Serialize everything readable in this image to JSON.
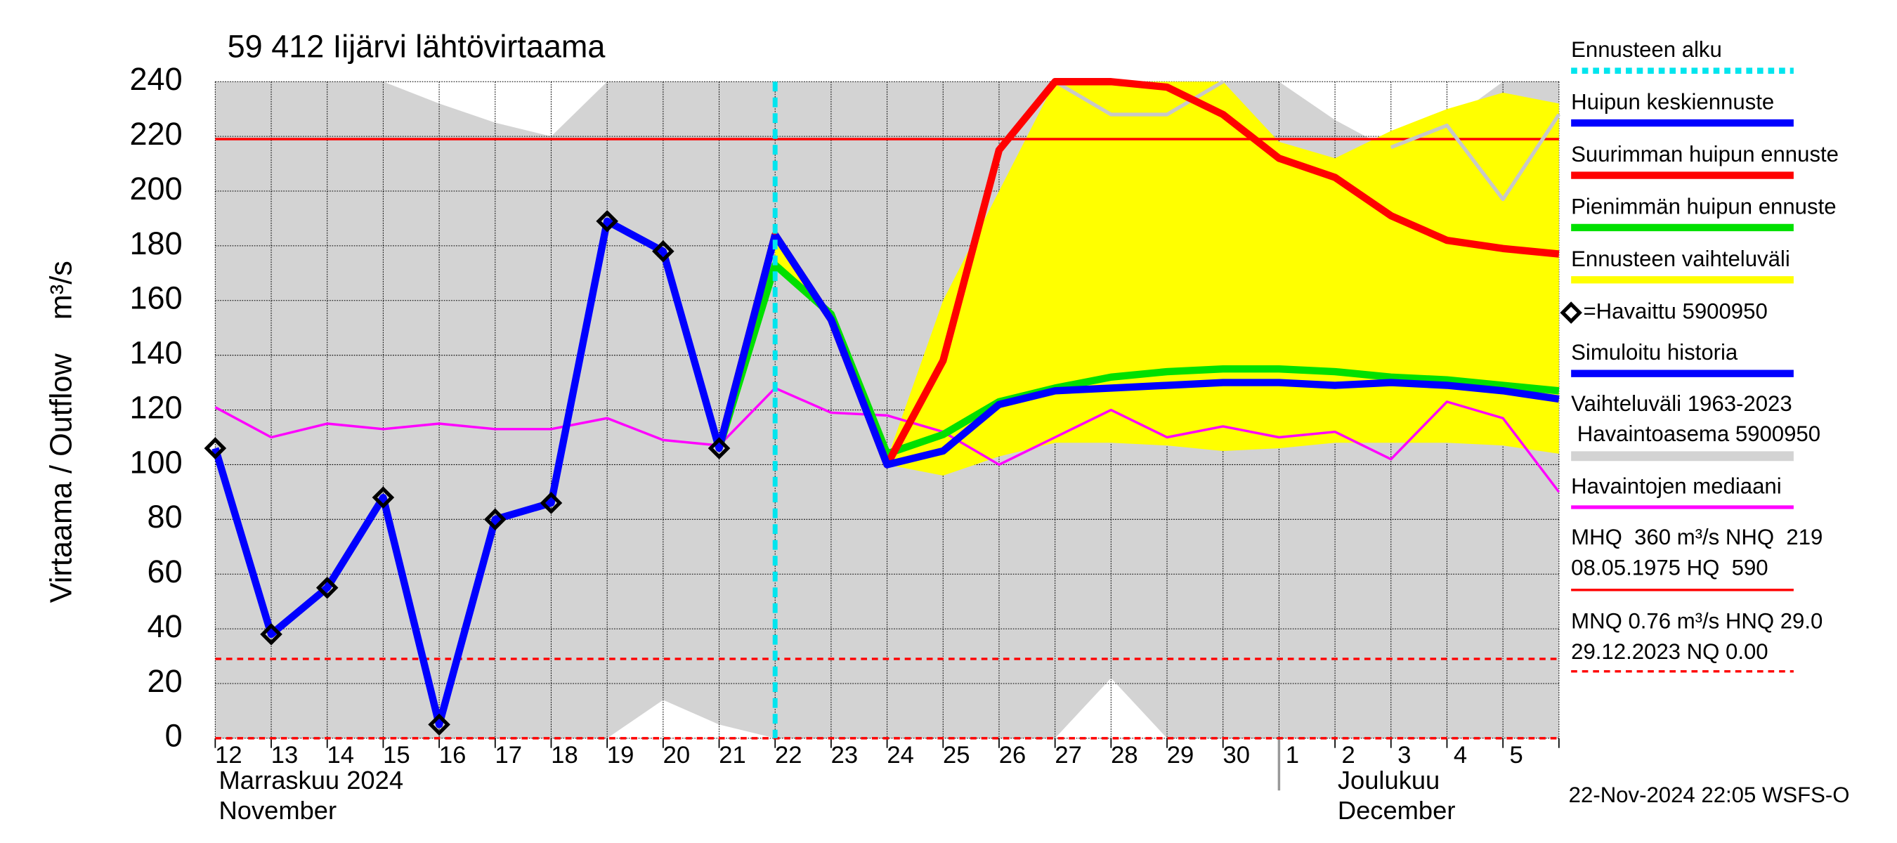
{
  "chart_data": {
    "type": "line",
    "title": "59 412 Iijärvi lähtövirtaama",
    "y_label": "Virtaama / Outflow    m³/s",
    "footer": "22-Nov-2024 22:05 WSFS-O",
    "month_labels": [
      [
        "Marraskuu 2024",
        "November"
      ],
      [
        "Joulukuu",
        "December"
      ]
    ],
    "categories": [
      "12",
      "13",
      "14",
      "15",
      "16",
      "17",
      "18",
      "19",
      "20",
      "21",
      "22",
      "23",
      "24",
      "25",
      "26",
      "27",
      "28",
      "29",
      "30",
      "1",
      "2",
      "3",
      "4",
      "5",
      null
    ],
    "ylim": [
      0,
      240
    ],
    "yticks": [
      0,
      20,
      40,
      60,
      80,
      100,
      120,
      140,
      160,
      180,
      200,
      220,
      240
    ],
    "grid": true,
    "forecast_start": {
      "name": "Ennusteen alku",
      "color": "#00e5ee",
      "x": 10
    },
    "reference_lines": [
      {
        "value": 219,
        "color": "#ff0000",
        "dashed": false,
        "label": [
          "MHQ  360 m³/s NHQ  219",
          "08.05.1975 HQ  590"
        ]
      },
      {
        "value": 29,
        "color": "#ff0000",
        "dashed": true,
        "label": [
          "MNQ 0.76 m³/s HNQ 29.0",
          "29.12.2023 NQ 0.00"
        ]
      },
      {
        "value": 0,
        "color": "#ff0000",
        "dashed": true
      }
    ],
    "series": [
      {
        "name": "Vaihteluväli 1963-2023",
        "kind": "band",
        "color": "#d3d3d3",
        "low": [
          0,
          0,
          0,
          0,
          0,
          0,
          0,
          0,
          14,
          5,
          0,
          0,
          0,
          0,
          0,
          0,
          22,
          0,
          0,
          0,
          0,
          0,
          0,
          0,
          0
        ],
        "high": [
          240,
          240,
          240,
          240,
          232,
          225,
          220,
          240,
          240,
          240,
          240,
          240,
          240,
          240,
          240,
          240,
          240,
          240,
          240,
          240,
          226,
          215,
          225,
          240,
          240
        ]
      },
      {
        "name": "Ennusteen vaihteluväli",
        "kind": "band",
        "color": "#ffff00",
        "low": [
          null,
          null,
          null,
          null,
          null,
          null,
          null,
          null,
          null,
          null,
          173,
          153,
          100,
          96,
          103,
          108,
          108,
          107,
          105,
          106,
          108,
          108,
          108,
          107,
          104
        ],
        "high": [
          null,
          null,
          null,
          null,
          null,
          null,
          null,
          null,
          null,
          null,
          184,
          155,
          102,
          160,
          200,
          240,
          240,
          240,
          240,
          218,
          212,
          222,
          230,
          236,
          232
        ]
      },
      {
        "name": " Havaintoasema 5900950",
        "kind": "line",
        "color": "#c8c8c8",
        "width": 3,
        "values": [
          null,
          null,
          null,
          null,
          null,
          null,
          null,
          null,
          null,
          null,
          null,
          null,
          null,
          null,
          null,
          240,
          228,
          228,
          240,
          null,
          null,
          216,
          224,
          197,
          228
        ]
      },
      {
        "name": "Havaintojen mediaani",
        "kind": "line",
        "color": "#ff00ff",
        "width": 2,
        "values": [
          121,
          110,
          115,
          113,
          115,
          113,
          113,
          117,
          109,
          107,
          128,
          119,
          118,
          112,
          100,
          110,
          120,
          110,
          114,
          110,
          112,
          102,
          123,
          117,
          90
        ]
      },
      {
        "name": "Pienimmän huipun ennuste",
        "kind": "line",
        "color": "#00e000",
        "width": 6,
        "values": [
          null,
          null,
          null,
          null,
          null,
          null,
          null,
          null,
          null,
          106,
          173,
          155,
          104,
          111,
          123,
          128,
          132,
          134,
          135,
          135,
          134,
          132,
          131,
          129,
          127
        ]
      },
      {
        "name": "Suurimman huipun ennuste",
        "kind": "line",
        "color": "#ff0000",
        "width": 6,
        "values": [
          null,
          null,
          null,
          null,
          null,
          null,
          null,
          null,
          null,
          106,
          184,
          153,
          100,
          138,
          215,
          240,
          240,
          238,
          228,
          212,
          205,
          191,
          182,
          179,
          177
        ]
      },
      {
        "name": "Huipun keskiennuste",
        "kind": "line",
        "color": "#0000ff",
        "width": 6,
        "values": [
          null,
          null,
          null,
          null,
          null,
          null,
          null,
          null,
          null,
          null,
          184,
          153,
          100,
          105,
          122,
          127,
          128,
          129,
          130,
          130,
          129,
          130,
          129,
          127,
          124
        ]
      },
      {
        "name": "Simuloitu historia",
        "kind": "line",
        "color": "#0000ff",
        "width": 6,
        "values": [
          106,
          38,
          55,
          88,
          5,
          80,
          86,
          189,
          178,
          106,
          184,
          null,
          null,
          null,
          null,
          null,
          null,
          null,
          null,
          null,
          null,
          null,
          null,
          null,
          null
        ]
      },
      {
        "name": "=Havaittu 5900950",
        "kind": "points",
        "color": "#000000",
        "values": [
          106,
          38,
          55,
          88,
          5,
          80,
          86,
          189,
          178,
          106,
          null,
          null,
          null,
          null,
          null,
          null,
          null,
          null,
          null,
          null,
          null,
          null,
          null,
          null,
          null
        ]
      }
    ]
  }
}
